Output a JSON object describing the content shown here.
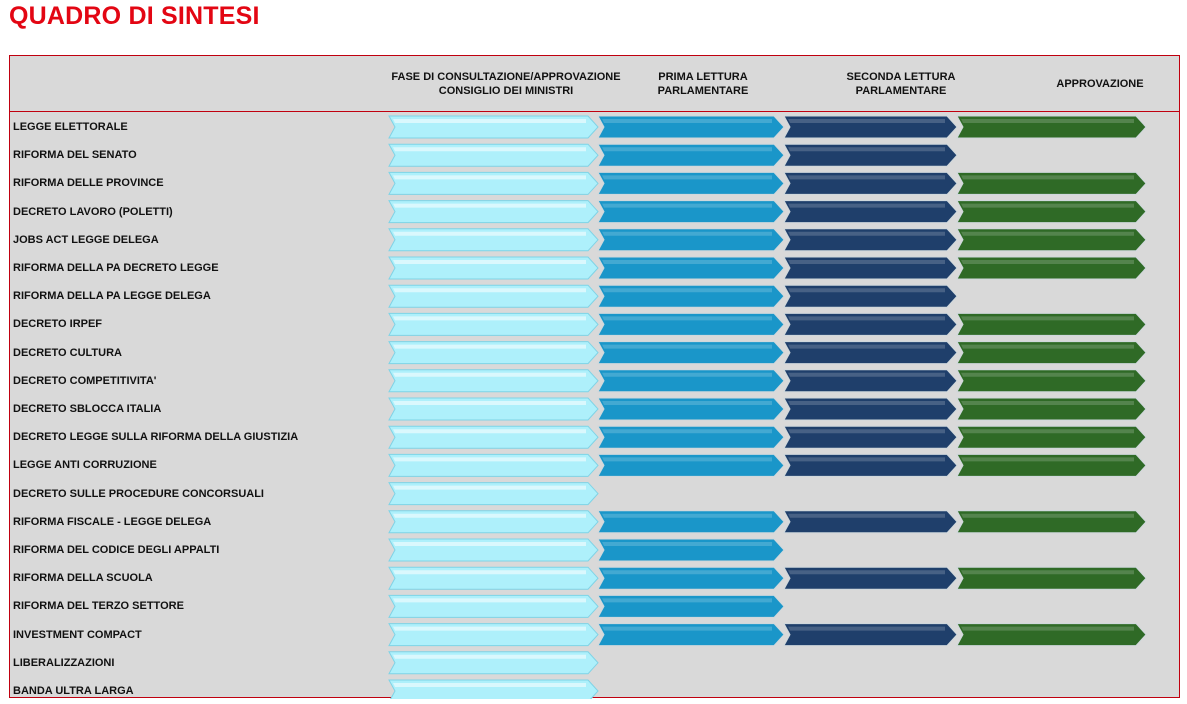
{
  "title": "QUADRO DI SINTESI",
  "colors": {
    "title": "#e30613",
    "border": "#c0000f",
    "panel": "#d9d9d9",
    "stage_fill": [
      "#aef0fb",
      "#1a96c9",
      "#1f3f6b",
      "#2f6a26"
    ]
  },
  "chart_data": {
    "type": "table",
    "title": "QUADRO DI SINTESI",
    "stages": [
      "FASE DI CONSULTAZIONE/APPROVAZIONE CONSIGLIO DEI MINISTRI",
      "PRIMA LETTURA PARLAMENTARE",
      "SECONDA LETTURA PARLAMENTARE",
      "APPROVAZIONE"
    ],
    "stage_lines": [
      [
        "FASE DI CONSULTAZIONE/APPROVAZIONE",
        "CONSIGLIO DEI MINISTRI"
      ],
      [
        "PRIMA LETTURA",
        "PARLAMENTARE"
      ],
      [
        "SECONDA LETTURA",
        "PARLAMENTARE"
      ],
      [
        "APPROVAZIONE"
      ]
    ],
    "rows": [
      {
        "label": "LEGGE ELETTORALE",
        "stages_completed": 4
      },
      {
        "label": "RIFORMA DEL SENATO",
        "stages_completed": 3
      },
      {
        "label": "RIFORMA DELLE PROVINCE",
        "stages_completed": 4
      },
      {
        "label": "DECRETO LAVORO (POLETTI)",
        "stages_completed": 4
      },
      {
        "label": "JOBS ACT LEGGE DELEGA",
        "stages_completed": 4
      },
      {
        "label": "RIFORMA DELLA PA DECRETO LEGGE",
        "stages_completed": 4
      },
      {
        "label": "RIFORMA DELLA PA LEGGE DELEGA",
        "stages_completed": 3
      },
      {
        "label": "DECRETO IRPEF",
        "stages_completed": 4
      },
      {
        "label": "DECRETO CULTURA",
        "stages_completed": 4
      },
      {
        "label": "DECRETO COMPETITIVITA'",
        "stages_completed": 4
      },
      {
        "label": "DECRETO SBLOCCA ITALIA",
        "stages_completed": 4
      },
      {
        "label": "DECRETO LEGGE SULLA RIFORMA DELLA GIUSTIZIA",
        "stages_completed": 4
      },
      {
        "label": "LEGGE ANTI CORRUZIONE",
        "stages_completed": 4
      },
      {
        "label": "DECRETO SULLE PROCEDURE CONCORSUALI",
        "stages_completed": 1
      },
      {
        "label": "RIFORMA FISCALE - LEGGE DELEGA",
        "stages_completed": 4
      },
      {
        "label": "RIFORMA DEL CODICE DEGLI APPALTI",
        "stages_completed": 2
      },
      {
        "label": "RIFORMA DELLA SCUOLA",
        "stages_completed": 4
      },
      {
        "label": "RIFORMA DEL TERZO SETTORE",
        "stages_completed": 2
      },
      {
        "label": "INVESTMENT COMPACT",
        "stages_completed": 4
      },
      {
        "label": "LIBERALIZZAZIONI",
        "stages_completed": 1
      },
      {
        "label": "BANDA ULTRA LARGA",
        "stages_completed": 1
      }
    ]
  }
}
